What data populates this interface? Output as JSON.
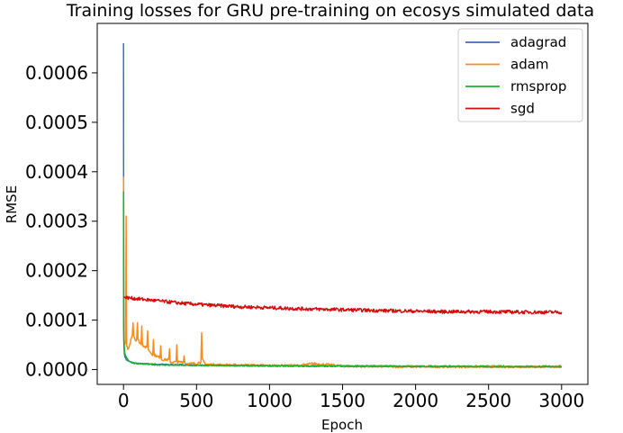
{
  "chart_data": {
    "type": "line",
    "title": "Training losses for GRU pre-training on ecosys simulated data",
    "xlabel": "Epoch",
    "ylabel": "RMSE",
    "xlim": [
      -180,
      3180
    ],
    "ylim": [
      -3e-05,
      0.0007
    ],
    "x_ticks": [
      0,
      500,
      1000,
      1500,
      2000,
      2500,
      3000
    ],
    "x_tick_labels": [
      "0",
      "500",
      "1000",
      "1500",
      "2000",
      "2500",
      "3000"
    ],
    "y_ticks": [
      0.0,
      0.0001,
      0.0002,
      0.0003,
      0.0004,
      0.0005,
      0.0006
    ],
    "y_tick_labels": [
      "0.0000",
      "0.0001",
      "0.0002",
      "0.0003",
      "0.0004",
      "0.0005",
      "0.0006"
    ],
    "grid": false,
    "legend_position": "top-right",
    "series": [
      {
        "name": "adagrad",
        "color": "#3b6fb6",
        "x": [
          0,
          1,
          3,
          6,
          10,
          20,
          40,
          70,
          100,
          200,
          300,
          500,
          800,
          1000,
          1500,
          2000,
          2500,
          3000
        ],
        "values": [
          0.00066,
          0.00024,
          5e-05,
          3.2e-05,
          2.6e-05,
          2e-05,
          1.6e-05,
          1.3e-05,
          1.2e-05,
          1.1e-05,
          1e-05,
          9e-06,
          8e-06,
          7.5e-06,
          6.8e-06,
          6.2e-06,
          5.8e-06,
          5.5e-06
        ]
      },
      {
        "name": "adam",
        "color": "#ff8c1a",
        "x": [
          0,
          1,
          2,
          5,
          10,
          15,
          18,
          20,
          22,
          25,
          30,
          40,
          50,
          60,
          65,
          70,
          80,
          90,
          95,
          100,
          120,
          125,
          130,
          150,
          160,
          165,
          170,
          200,
          205,
          210,
          240,
          250,
          255,
          260,
          300,
          310,
          315,
          320,
          350,
          360,
          365,
          370,
          400,
          410,
          415,
          420,
          450,
          500,
          520,
          530,
          535,
          540,
          550,
          560,
          580,
          600,
          700,
          800,
          1000,
          1200,
          1300,
          1500,
          2000,
          2500,
          3000
        ],
        "values": [
          0.00039,
          0.00033,
          8e-05,
          5.5e-05,
          5e-05,
          6e-05,
          0.00031,
          0.00011,
          5e-05,
          4.5e-05,
          4e-05,
          4.5e-05,
          6e-05,
          7e-05,
          9.5e-05,
          7e-05,
          6e-05,
          6e-05,
          9.5e-05,
          6e-05,
          5e-05,
          9e-05,
          5e-05,
          4.5e-05,
          4.5e-05,
          8e-05,
          4e-05,
          3e-05,
          6e-05,
          3e-05,
          2.5e-05,
          2.5e-05,
          5e-05,
          2e-05,
          2e-05,
          2e-05,
          4e-05,
          1.5e-05,
          1.5e-05,
          1.5e-05,
          5e-05,
          1.5e-05,
          1.5e-05,
          1.5e-05,
          3e-05,
          1.2e-05,
          1.2e-05,
          1.2e-05,
          1.5e-05,
          1.5e-05,
          7.2e-05,
          2e-05,
          1.5e-05,
          1.2e-05,
          1e-05,
          1e-05,
          9e-06,
          9e-06,
          8e-06,
          8e-06,
          1.2e-05,
          7e-06,
          6e-06,
          6e-06,
          6e-06
        ]
      },
      {
        "name": "rmsprop",
        "color": "#19b02e",
        "x": [
          0,
          1,
          2,
          5,
          8,
          12,
          20,
          30,
          50,
          80,
          100,
          150,
          200,
          300,
          500,
          800,
          1000,
          1500,
          2000,
          2500,
          3000
        ],
        "values": [
          0.00036,
          9e-05,
          6e-05,
          4.5e-05,
          3.5e-05,
          3e-05,
          2.5e-05,
          2e-05,
          1.5e-05,
          1.3e-05,
          1.2e-05,
          1.1e-05,
          1e-05,
          9e-06,
          8.5e-06,
          8e-06,
          7.5e-06,
          7e-06,
          6.5e-06,
          6e-06,
          6e-06
        ]
      },
      {
        "name": "sgd",
        "color": "#d40d0d",
        "x": [
          0,
          100,
          200,
          300,
          400,
          500,
          600,
          800,
          1000,
          1200,
          1500,
          1800,
          2000,
          2200,
          2500,
          2800,
          3000
        ],
        "values": [
          0.000146,
          0.000143,
          0.00014,
          0.000137,
          0.000134,
          0.000132,
          0.00013,
          0.000127,
          0.000125,
          0.000123,
          0.000121,
          0.000119,
          0.000118,
          0.000117,
          0.000117,
          0.000116,
          0.000116
        ]
      }
    ]
  }
}
